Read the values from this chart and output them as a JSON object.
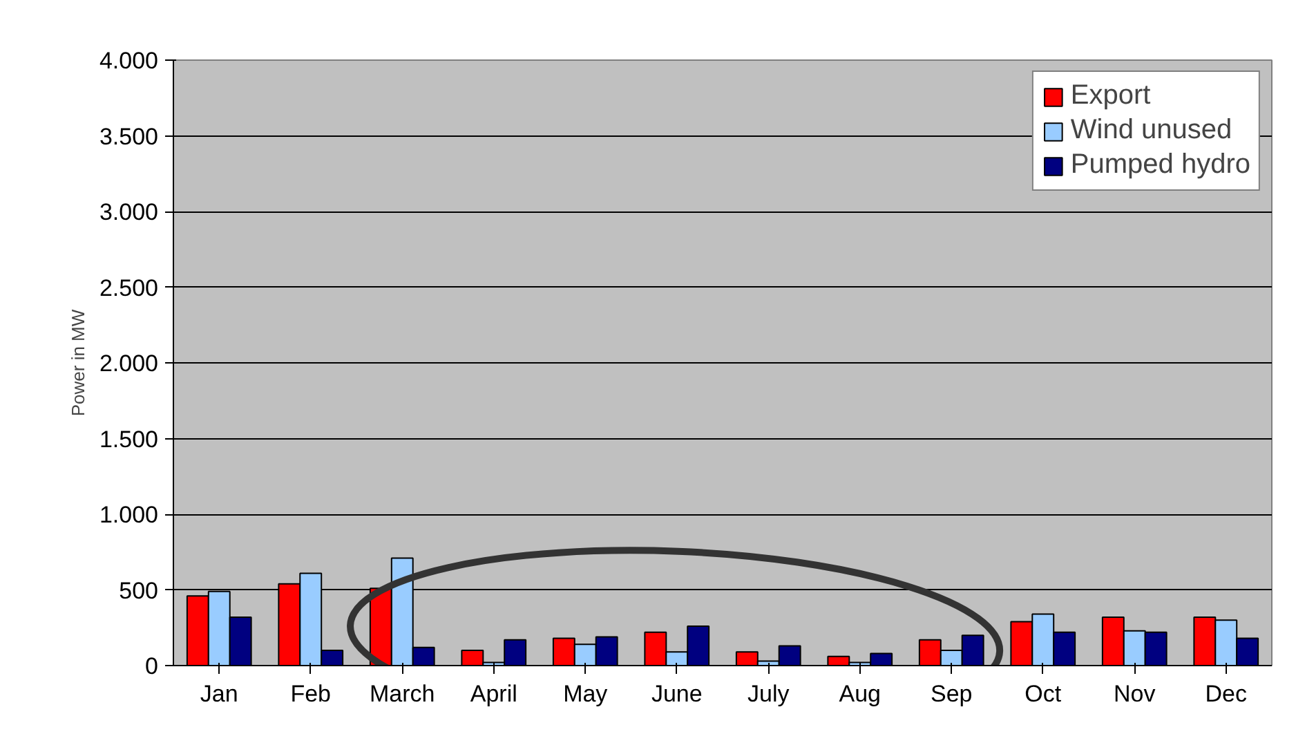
{
  "chart_data": {
    "type": "bar",
    "ylabel": "Power in MW",
    "categories": [
      "Jan",
      "Feb",
      "March",
      "April",
      "May",
      "June",
      "July",
      "Aug",
      "Sep",
      "Oct",
      "Nov",
      "Dec"
    ],
    "series": [
      {
        "name": "Export",
        "color": "#ff0000",
        "values": [
          460,
          540,
          510,
          100,
          180,
          220,
          90,
          60,
          170,
          290,
          320,
          320
        ]
      },
      {
        "name": "Wind unused",
        "color": "#99ccff",
        "values": [
          490,
          610,
          710,
          20,
          140,
          90,
          30,
          20,
          100,
          340,
          230,
          300
        ]
      },
      {
        "name": "Pumped hydro",
        "color": "#000080",
        "values": [
          320,
          100,
          120,
          170,
          190,
          260,
          130,
          80,
          200,
          220,
          220,
          180
        ]
      }
    ],
    "ylim": [
      0,
      4000
    ],
    "yticks": [
      0,
      {
        "value": 500,
        "label": "500"
      },
      {
        "value": 1000,
        "label": "1.000"
      },
      {
        "value": 1500,
        "label": "1.500"
      },
      {
        "value": 2000,
        "label": "2.000"
      },
      {
        "value": 2500,
        "label": "2.500"
      },
      {
        "value": 3000,
        "label": "3.000"
      },
      {
        "value": 3500,
        "label": "3.500"
      },
      {
        "value": 4000,
        "label": "4.000"
      }
    ],
    "grid": "y",
    "legend": "top right"
  }
}
